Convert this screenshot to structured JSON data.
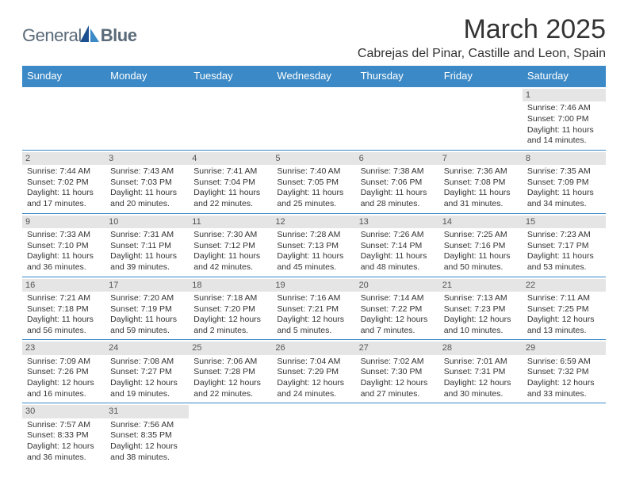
{
  "logo": {
    "text1": "General",
    "text2": "Blue"
  },
  "title": "March 2025",
  "subtitle": "Cabrejas del Pinar, Castille and Leon, Spain",
  "colors": {
    "accent": "#3b89c6",
    "header_bg": "#3b89c6",
    "header_text": "#ffffff",
    "daynum_bg": "#e5e5e5",
    "text": "#333333",
    "logo_text": "#5a6a78",
    "logo_icon1": "#1b4f8f",
    "logo_icon2": "#3b89c6"
  },
  "days_of_week": [
    "Sunday",
    "Monday",
    "Tuesday",
    "Wednesday",
    "Thursday",
    "Friday",
    "Saturday"
  ],
  "calendar": [
    [
      null,
      null,
      null,
      null,
      null,
      null,
      {
        "d": "1",
        "sr": "Sunrise: 7:46 AM",
        "ss": "Sunset: 7:00 PM",
        "dl": "Daylight: 11 hours and 14 minutes."
      }
    ],
    [
      {
        "d": "2",
        "sr": "Sunrise: 7:44 AM",
        "ss": "Sunset: 7:02 PM",
        "dl": "Daylight: 11 hours and 17 minutes."
      },
      {
        "d": "3",
        "sr": "Sunrise: 7:43 AM",
        "ss": "Sunset: 7:03 PM",
        "dl": "Daylight: 11 hours and 20 minutes."
      },
      {
        "d": "4",
        "sr": "Sunrise: 7:41 AM",
        "ss": "Sunset: 7:04 PM",
        "dl": "Daylight: 11 hours and 22 minutes."
      },
      {
        "d": "5",
        "sr": "Sunrise: 7:40 AM",
        "ss": "Sunset: 7:05 PM",
        "dl": "Daylight: 11 hours and 25 minutes."
      },
      {
        "d": "6",
        "sr": "Sunrise: 7:38 AM",
        "ss": "Sunset: 7:06 PM",
        "dl": "Daylight: 11 hours and 28 minutes."
      },
      {
        "d": "7",
        "sr": "Sunrise: 7:36 AM",
        "ss": "Sunset: 7:08 PM",
        "dl": "Daylight: 11 hours and 31 minutes."
      },
      {
        "d": "8",
        "sr": "Sunrise: 7:35 AM",
        "ss": "Sunset: 7:09 PM",
        "dl": "Daylight: 11 hours and 34 minutes."
      }
    ],
    [
      {
        "d": "9",
        "sr": "Sunrise: 7:33 AM",
        "ss": "Sunset: 7:10 PM",
        "dl": "Daylight: 11 hours and 36 minutes."
      },
      {
        "d": "10",
        "sr": "Sunrise: 7:31 AM",
        "ss": "Sunset: 7:11 PM",
        "dl": "Daylight: 11 hours and 39 minutes."
      },
      {
        "d": "11",
        "sr": "Sunrise: 7:30 AM",
        "ss": "Sunset: 7:12 PM",
        "dl": "Daylight: 11 hours and 42 minutes."
      },
      {
        "d": "12",
        "sr": "Sunrise: 7:28 AM",
        "ss": "Sunset: 7:13 PM",
        "dl": "Daylight: 11 hours and 45 minutes."
      },
      {
        "d": "13",
        "sr": "Sunrise: 7:26 AM",
        "ss": "Sunset: 7:14 PM",
        "dl": "Daylight: 11 hours and 48 minutes."
      },
      {
        "d": "14",
        "sr": "Sunrise: 7:25 AM",
        "ss": "Sunset: 7:16 PM",
        "dl": "Daylight: 11 hours and 50 minutes."
      },
      {
        "d": "15",
        "sr": "Sunrise: 7:23 AM",
        "ss": "Sunset: 7:17 PM",
        "dl": "Daylight: 11 hours and 53 minutes."
      }
    ],
    [
      {
        "d": "16",
        "sr": "Sunrise: 7:21 AM",
        "ss": "Sunset: 7:18 PM",
        "dl": "Daylight: 11 hours and 56 minutes."
      },
      {
        "d": "17",
        "sr": "Sunrise: 7:20 AM",
        "ss": "Sunset: 7:19 PM",
        "dl": "Daylight: 11 hours and 59 minutes."
      },
      {
        "d": "18",
        "sr": "Sunrise: 7:18 AM",
        "ss": "Sunset: 7:20 PM",
        "dl": "Daylight: 12 hours and 2 minutes."
      },
      {
        "d": "19",
        "sr": "Sunrise: 7:16 AM",
        "ss": "Sunset: 7:21 PM",
        "dl": "Daylight: 12 hours and 5 minutes."
      },
      {
        "d": "20",
        "sr": "Sunrise: 7:14 AM",
        "ss": "Sunset: 7:22 PM",
        "dl": "Daylight: 12 hours and 7 minutes."
      },
      {
        "d": "21",
        "sr": "Sunrise: 7:13 AM",
        "ss": "Sunset: 7:23 PM",
        "dl": "Daylight: 12 hours and 10 minutes."
      },
      {
        "d": "22",
        "sr": "Sunrise: 7:11 AM",
        "ss": "Sunset: 7:25 PM",
        "dl": "Daylight: 12 hours and 13 minutes."
      }
    ],
    [
      {
        "d": "23",
        "sr": "Sunrise: 7:09 AM",
        "ss": "Sunset: 7:26 PM",
        "dl": "Daylight: 12 hours and 16 minutes."
      },
      {
        "d": "24",
        "sr": "Sunrise: 7:08 AM",
        "ss": "Sunset: 7:27 PM",
        "dl": "Daylight: 12 hours and 19 minutes."
      },
      {
        "d": "25",
        "sr": "Sunrise: 7:06 AM",
        "ss": "Sunset: 7:28 PM",
        "dl": "Daylight: 12 hours and 22 minutes."
      },
      {
        "d": "26",
        "sr": "Sunrise: 7:04 AM",
        "ss": "Sunset: 7:29 PM",
        "dl": "Daylight: 12 hours and 24 minutes."
      },
      {
        "d": "27",
        "sr": "Sunrise: 7:02 AM",
        "ss": "Sunset: 7:30 PM",
        "dl": "Daylight: 12 hours and 27 minutes."
      },
      {
        "d": "28",
        "sr": "Sunrise: 7:01 AM",
        "ss": "Sunset: 7:31 PM",
        "dl": "Daylight: 12 hours and 30 minutes."
      },
      {
        "d": "29",
        "sr": "Sunrise: 6:59 AM",
        "ss": "Sunset: 7:32 PM",
        "dl": "Daylight: 12 hours and 33 minutes."
      }
    ],
    [
      {
        "d": "30",
        "sr": "Sunrise: 7:57 AM",
        "ss": "Sunset: 8:33 PM",
        "dl": "Daylight: 12 hours and 36 minutes."
      },
      {
        "d": "31",
        "sr": "Sunrise: 7:56 AM",
        "ss": "Sunset: 8:35 PM",
        "dl": "Daylight: 12 hours and 38 minutes."
      },
      null,
      null,
      null,
      null,
      null
    ]
  ]
}
